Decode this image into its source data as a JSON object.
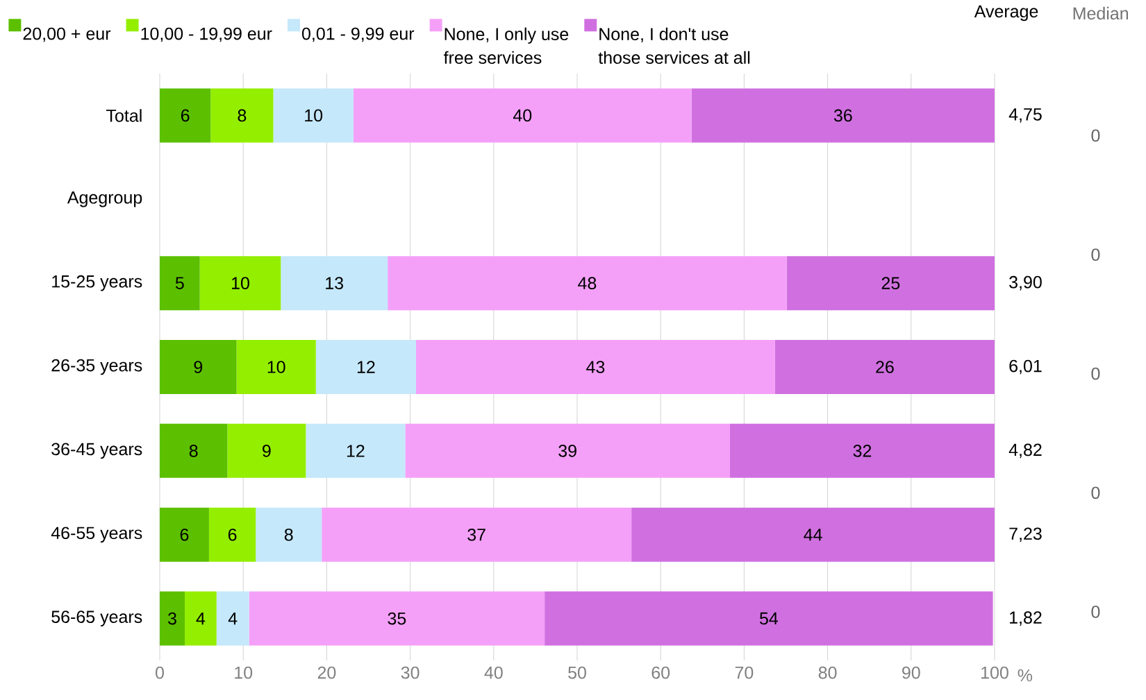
{
  "chart_data": {
    "type": "bar",
    "orientation": "horizontal",
    "stacked": true,
    "categories": [
      "Total",
      "Agegroup",
      "15-25 years",
      "26-35 years",
      "36-45 years",
      "46-55 years",
      "56-65 years"
    ],
    "series": [
      {
        "name": "20,00 + eur",
        "color": "#5cc000",
        "values": [
          6.1,
          null,
          4.8,
          9.2,
          8.1,
          5.9,
          3.0
        ],
        "value_labels": [
          "6",
          null,
          "5",
          "9",
          "8",
          "6",
          "3"
        ]
      },
      {
        "name": "10,00 - 19,99 eur",
        "color": "#94ee00",
        "values": [
          7.5,
          null,
          9.7,
          9.5,
          9.4,
          5.6,
          3.8
        ],
        "value_labels": [
          "8",
          null,
          "10",
          "10",
          "9",
          "6",
          "4"
        ]
      },
      {
        "name": "0,01 - 9,99 eur",
        "color": "#c5e8fb",
        "values": [
          9.6,
          null,
          12.8,
          12.0,
          11.9,
          7.9,
          3.9
        ],
        "value_labels": [
          "10",
          null,
          "13",
          "12",
          "12",
          "8",
          "4"
        ]
      },
      {
        "name": "None, I only use free services",
        "color": "#f4a0f8",
        "values": [
          40.5,
          null,
          47.8,
          43.0,
          38.9,
          37.1,
          35.4
        ],
        "value_labels": [
          "40",
          null,
          "48",
          "43",
          "39",
          "37",
          "35"
        ]
      },
      {
        "name": "None, I don't use those services at all",
        "color": "#d070e0",
        "values": [
          36.3,
          null,
          24.9,
          26.3,
          31.7,
          43.5,
          53.7
        ],
        "value_labels": [
          "36",
          null,
          "25",
          "26",
          "32",
          "44",
          "54"
        ]
      }
    ],
    "xlim": [
      0,
      100
    ],
    "xticks": [
      0,
      10,
      20,
      30,
      40,
      50,
      60,
      70,
      80,
      90,
      100
    ],
    "xlabel": "%",
    "grid": "x",
    "legend": "top",
    "annotations": [
      "Average",
      "4,75",
      "3,90",
      "6,01",
      "4,82",
      "7,23",
      "1,82",
      "Median",
      "0",
      "0",
      "0",
      "0",
      "0"
    ]
  }
}
